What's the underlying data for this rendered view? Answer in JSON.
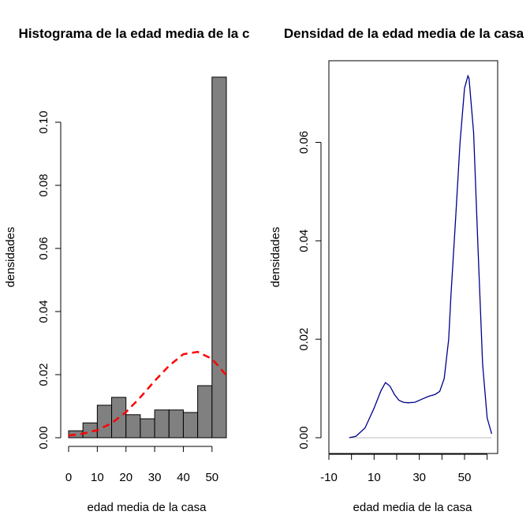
{
  "chart_data": [
    {
      "type": "bar",
      "title": "Histograma de la edad media de la c",
      "xlabel": "edad media de la casa",
      "ylabel": "densidades",
      "xlim": [
        0,
        55
      ],
      "ylim": [
        0,
        0.11
      ],
      "x_ticks": [
        "0",
        "10",
        "20",
        "30",
        "40",
        "50"
      ],
      "y_ticks": [
        "0.00",
        "0.02",
        "0.04",
        "0.06",
        "0.08",
        "0.10"
      ],
      "bar_color": "#808080",
      "bins": [
        {
          "from": 0,
          "to": 5,
          "value": 0.0022
        },
        {
          "from": 5,
          "to": 10,
          "value": 0.0047
        },
        {
          "from": 10,
          "to": 15,
          "value": 0.0103
        },
        {
          "from": 15,
          "to": 20,
          "value": 0.0128
        },
        {
          "from": 20,
          "to": 25,
          "value": 0.0073
        },
        {
          "from": 25,
          "to": 30,
          "value": 0.006
        },
        {
          "from": 30,
          "to": 35,
          "value": 0.0088
        },
        {
          "from": 35,
          "to": 40,
          "value": 0.0088
        },
        {
          "from": 40,
          "to": 45,
          "value": 0.008
        },
        {
          "from": 45,
          "to": 50,
          "value": 0.0165
        },
        {
          "from": 50,
          "to": 55,
          "value": 0.1143
        }
      ],
      "curve": {
        "color": "#ff0000",
        "style": "dashed",
        "x": [
          0,
          5,
          10,
          15,
          20,
          25,
          30,
          35,
          40,
          45,
          50,
          55
        ],
        "y": [
          0.0007,
          0.0013,
          0.0024,
          0.0046,
          0.0081,
          0.0128,
          0.018,
          0.0228,
          0.0265,
          0.0272,
          0.025,
          0.0198
        ]
      }
    },
    {
      "type": "line",
      "title": "Densidad de la edad media de la casa",
      "xlabel": "edad media de la casa",
      "ylabel": "densidades",
      "xlim": [
        -10,
        62
      ],
      "ylim": [
        0,
        0.075
      ],
      "x_ticks": [
        "-10",
        "10",
        "30",
        "50"
      ],
      "y_ticks": [
        "0.00",
        "0.02",
        "0.04",
        "0.06"
      ],
      "line_color": "#00008b",
      "baseline_color": "#bebebe",
      "x": [
        -1,
        2,
        6,
        10,
        13,
        15,
        17,
        19,
        21,
        23,
        25,
        28,
        31,
        34,
        37,
        39,
        41,
        43,
        44,
        46,
        48,
        50,
        51.5,
        52,
        54,
        56,
        58,
        60,
        62
      ],
      "y": [
        0.0,
        0.0003,
        0.002,
        0.006,
        0.0095,
        0.0112,
        0.0105,
        0.0088,
        0.0076,
        0.0072,
        0.0071,
        0.0072,
        0.0078,
        0.0084,
        0.0088,
        0.0094,
        0.012,
        0.02,
        0.029,
        0.044,
        0.06,
        0.071,
        0.0735,
        0.073,
        0.062,
        0.038,
        0.015,
        0.004,
        0.0008
      ]
    }
  ]
}
